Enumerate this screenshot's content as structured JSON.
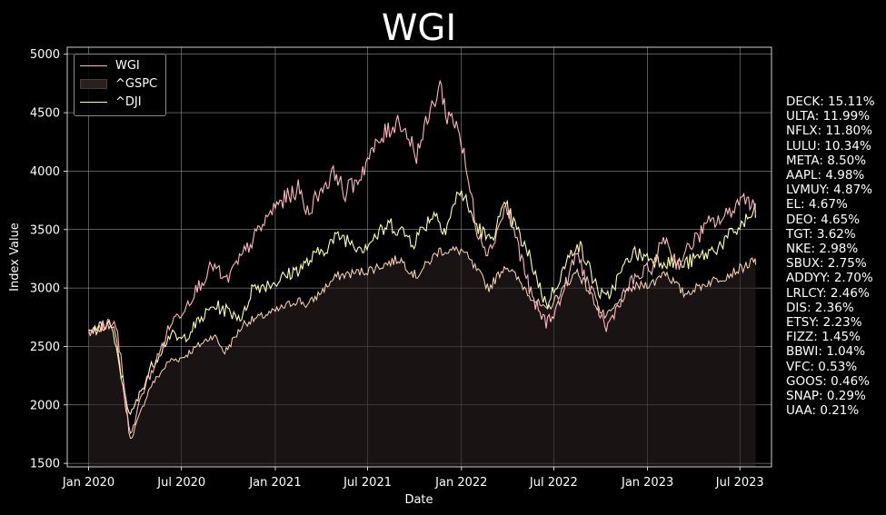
{
  "chart_data": {
    "type": "line",
    "title": "WGI",
    "xlabel": "Date",
    "ylabel": "Index Value",
    "ylim": [
      1470,
      5060
    ],
    "xlim": [
      "2019-11-20",
      "2023-09-01"
    ],
    "yticks": [
      1500,
      2000,
      2500,
      3000,
      3500,
      4000,
      4500,
      5000
    ],
    "xticks": [
      "2020-01-01",
      "2020-07-01",
      "2021-01-01",
      "2021-07-01",
      "2022-01-01",
      "2022-07-01",
      "2023-01-01",
      "2023-07-01"
    ],
    "xtick_labels": [
      "Jan 2020",
      "Jul 2020",
      "Jan 2021",
      "Jul 2021",
      "Jan 2022",
      "Jul 2022",
      "Jan 2023",
      "Jul 2023"
    ],
    "grid": true,
    "legend_position": "top-left",
    "series": [
      {
        "name": "WGI",
        "style": "line",
        "color": "#ffb6c1",
        "points": [
          [
            "2020-01-01",
            2610
          ],
          [
            "2020-02-01",
            2680
          ],
          [
            "2020-02-20",
            2720
          ],
          [
            "2020-03-01",
            2500
          ],
          [
            "2020-03-23",
            1730
          ],
          [
            "2020-04-15",
            2100
          ],
          [
            "2020-05-15",
            2400
          ],
          [
            "2020-06-10",
            2700
          ],
          [
            "2020-07-01",
            2800
          ],
          [
            "2020-08-01",
            3000
          ],
          [
            "2020-09-01",
            3200
          ],
          [
            "2020-09-25",
            3050
          ],
          [
            "2020-11-01",
            3300
          ],
          [
            "2020-12-01",
            3500
          ],
          [
            "2021-01-01",
            3700
          ],
          [
            "2021-02-15",
            3850
          ],
          [
            "2021-03-05",
            3650
          ],
          [
            "2021-04-01",
            3850
          ],
          [
            "2021-05-01",
            4000
          ],
          [
            "2021-05-15",
            3800
          ],
          [
            "2021-06-15",
            3950
          ],
          [
            "2021-07-01",
            4100
          ],
          [
            "2021-08-01",
            4300
          ],
          [
            "2021-09-01",
            4450
          ],
          [
            "2021-10-05",
            4150
          ],
          [
            "2021-11-01",
            4500
          ],
          [
            "2021-11-20",
            4750
          ],
          [
            "2021-12-01",
            4500
          ],
          [
            "2021-12-25",
            4400
          ],
          [
            "2022-01-15",
            3900
          ],
          [
            "2022-02-01",
            3500
          ],
          [
            "2022-02-24",
            3300
          ],
          [
            "2022-03-29",
            3700
          ],
          [
            "2022-04-20",
            3400
          ],
          [
            "2022-05-20",
            2900
          ],
          [
            "2022-06-16",
            2700
          ],
          [
            "2022-07-10",
            2850
          ],
          [
            "2022-08-15",
            3300
          ],
          [
            "2022-09-10",
            3000
          ],
          [
            "2022-10-12",
            2650
          ],
          [
            "2022-11-15",
            2950
          ],
          [
            "2022-12-01",
            3050
          ],
          [
            "2023-01-15",
            3200
          ],
          [
            "2023-02-01",
            3450
          ],
          [
            "2023-03-01",
            3200
          ],
          [
            "2023-04-01",
            3400
          ],
          [
            "2023-05-01",
            3550
          ],
          [
            "2023-06-01",
            3600
          ],
          [
            "2023-06-20",
            3700
          ],
          [
            "2023-07-15",
            3800
          ],
          [
            "2023-08-01",
            3650
          ]
        ]
      },
      {
        "name": "^GSPC",
        "style": "area",
        "color": "#2a2020",
        "points": [
          [
            "2020-01-01",
            2610
          ],
          [
            "2020-02-19",
            2700
          ],
          [
            "2020-03-23",
            1700
          ],
          [
            "2020-04-30",
            2150
          ],
          [
            "2020-06-08",
            2380
          ],
          [
            "2020-07-01",
            2400
          ],
          [
            "2020-09-02",
            2600
          ],
          [
            "2020-09-24",
            2450
          ],
          [
            "2020-11-01",
            2700
          ],
          [
            "2021-01-01",
            2800
          ],
          [
            "2021-02-15",
            2900
          ],
          [
            "2021-03-05",
            2850
          ],
          [
            "2021-05-01",
            3100
          ],
          [
            "2021-07-01",
            3150
          ],
          [
            "2021-09-02",
            3250
          ],
          [
            "2021-10-04",
            3100
          ],
          [
            "2021-11-18",
            3320
          ],
          [
            "2022-01-03",
            3320
          ],
          [
            "2022-02-24",
            3000
          ],
          [
            "2022-03-29",
            3200
          ],
          [
            "2022-05-20",
            2920
          ],
          [
            "2022-06-16",
            2800
          ],
          [
            "2022-08-16",
            3150
          ],
          [
            "2022-09-30",
            2800
          ],
          [
            "2022-10-12",
            2750
          ],
          [
            "2022-12-01",
            3000
          ],
          [
            "2023-01-15",
            3050
          ],
          [
            "2023-02-02",
            3150
          ],
          [
            "2023-03-13",
            2950
          ],
          [
            "2023-05-01",
            3050
          ],
          [
            "2023-06-01",
            3100
          ],
          [
            "2023-07-31",
            3230
          ],
          [
            "2023-08-01",
            3200
          ]
        ]
      },
      {
        "name": "^DJI",
        "style": "line",
        "color": "#ffffaa",
        "points": [
          [
            "2020-01-01",
            2610
          ],
          [
            "2020-02-12",
            2700
          ],
          [
            "2020-03-23",
            1900
          ],
          [
            "2020-04-30",
            2300
          ],
          [
            "2020-06-08",
            2600
          ],
          [
            "2020-07-01",
            2550
          ],
          [
            "2020-09-02",
            2850
          ],
          [
            "2020-10-30",
            2750
          ],
          [
            "2020-11-16",
            3000
          ],
          [
            "2021-01-01",
            3050
          ],
          [
            "2021-03-01",
            3200
          ],
          [
            "2021-05-07",
            3450
          ],
          [
            "2021-06-21",
            3350
          ],
          [
            "2021-08-16",
            3550
          ],
          [
            "2021-09-30",
            3400
          ],
          [
            "2021-11-08",
            3650
          ],
          [
            "2021-12-01",
            3500
          ],
          [
            "2021-12-29",
            3850
          ],
          [
            "2022-01-28",
            3550
          ],
          [
            "2022-02-24",
            3400
          ],
          [
            "2022-03-29",
            3700
          ],
          [
            "2022-05-20",
            3200
          ],
          [
            "2022-06-16",
            2850
          ],
          [
            "2022-08-16",
            3400
          ],
          [
            "2022-09-30",
            2950
          ],
          [
            "2022-10-12",
            2900
          ],
          [
            "2022-12-01",
            3300
          ],
          [
            "2023-01-15",
            3250
          ],
          [
            "2023-03-13",
            3200
          ],
          [
            "2023-05-01",
            3300
          ],
          [
            "2023-06-01",
            3400
          ],
          [
            "2023-07-31",
            3650
          ],
          [
            "2023-08-01",
            3620
          ]
        ]
      }
    ],
    "annotations": [
      "DECK: 15.11%",
      "ULTA: 11.99%",
      "NFLX: 11.80%",
      "LULU: 10.34%",
      "META: 8.50%",
      "AAPL: 4.98%",
      "LVMUY: 4.87%",
      "EL: 4.67%",
      "DEO: 4.65%",
      "TGT: 3.62%",
      "NKE: 2.98%",
      "SBUX: 2.75%",
      "ADDYY: 2.70%",
      "LRLCY: 2.46%",
      "DIS: 2.36%",
      "ETSY: 2.23%",
      "FIZZ: 1.45%",
      "BBWI: 1.04%",
      "VFC: 0.53%",
      "GOOS: 0.46%",
      "SNAP: 0.29%",
      "UAA: 0.21%"
    ]
  }
}
